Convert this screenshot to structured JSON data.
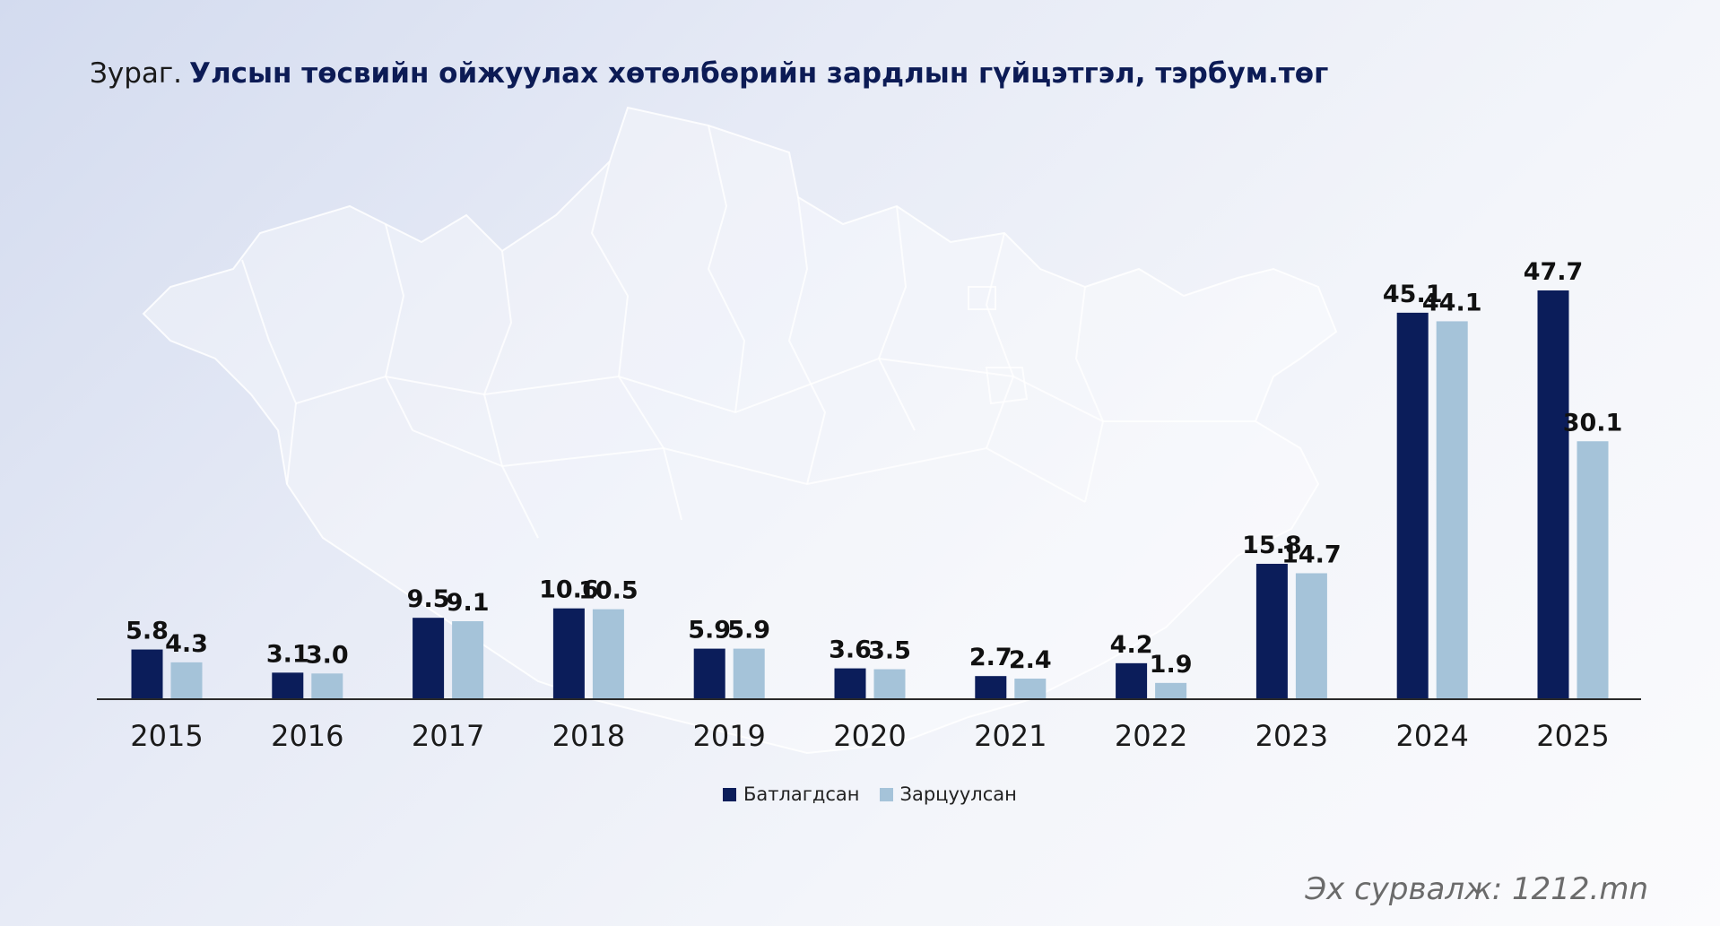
{
  "title": {
    "prefix": "Зураг.",
    "main": "Улсын төсвийн ойжуулах хөтөлбөрийн зардлын гүйцэтгэл, тэрбум.төг"
  },
  "source": "Эх сурвалж: 1212.mn",
  "colors": {
    "approved": "#0b1d5a",
    "spent": "#a5c3d9",
    "axis": "#2a2a2a"
  },
  "legend": {
    "approved": "Батлагдсан",
    "spent": "Зарцуулсан"
  },
  "chart_data": {
    "type": "bar",
    "title": "Улсын төсвийн ойжуулах хөтөлбөрийн зардлын гүйцэтгэл, тэрбум.төг",
    "xlabel": "",
    "ylabel": "",
    "categories": [
      "2015",
      "2016",
      "2017",
      "2018",
      "2019",
      "2020",
      "2021",
      "2022",
      "2023",
      "2024",
      "2025"
    ],
    "series": [
      {
        "name": "Батлагдсан",
        "values": [
          5.8,
          3.1,
          9.5,
          10.6,
          5.9,
          3.6,
          2.7,
          4.2,
          15.8,
          45.1,
          47.7
        ],
        "labels": [
          "5.8",
          "3.1",
          "9.5",
          "10.6",
          "5.9",
          "3.6",
          "2.7",
          "4.2",
          "15.8",
          "45.1",
          "47.7"
        ]
      },
      {
        "name": "Зарцуулсан",
        "values": [
          4.3,
          3.0,
          9.1,
          10.5,
          5.9,
          3.5,
          2.4,
          1.9,
          14.7,
          44.1,
          30.1
        ],
        "labels": [
          "4.3",
          "3.0",
          "9.1",
          "10.5",
          "5.9",
          "3.5",
          "2.4",
          "1.9",
          "14.7",
          "44.1",
          "30.1"
        ]
      }
    ],
    "ylim": [
      0,
      47.7
    ],
    "grid": false,
    "legend_position": "bottom-center"
  }
}
